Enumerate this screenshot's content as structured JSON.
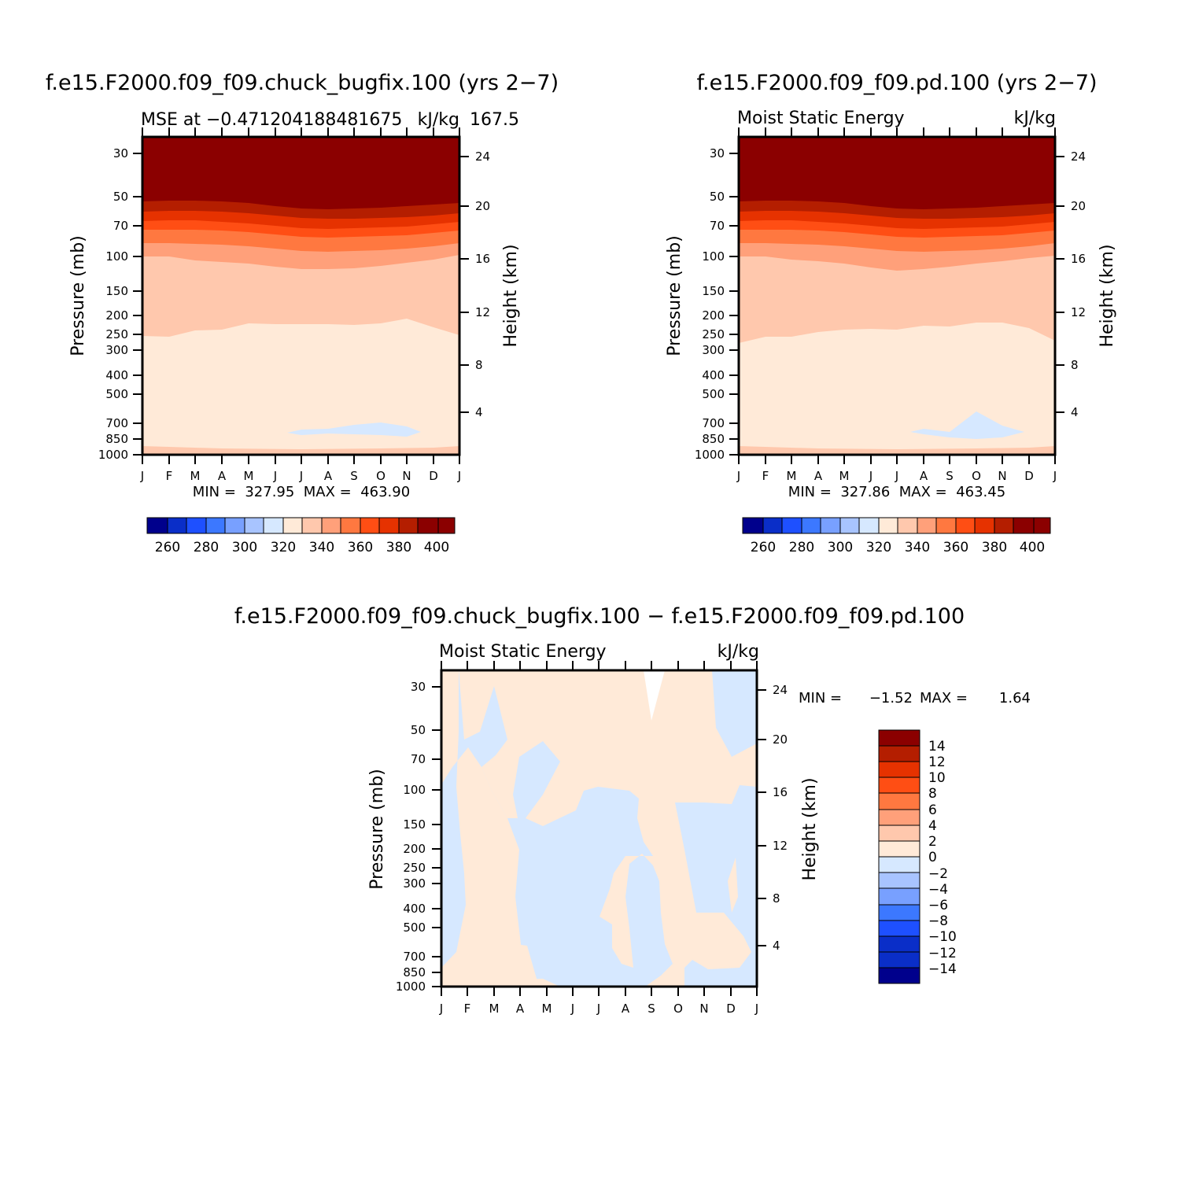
{
  "palette": [
    "#00008c",
    "#0a2ec8",
    "#1e50ff",
    "#3c78ff",
    "#78a0ff",
    "#a8c4ff",
    "#d6e8ff",
    "#ffead8",
    "#ffc8ad",
    "#ffa07a",
    "#ff7840",
    "#ff4e14",
    "#e63200",
    "#b41e00",
    "#8b0000"
  ],
  "chart_data": [
    {
      "type": "contour",
      "panel": "top-left",
      "title": "f.e15.F2000.f09_f09.chuck_bugfix.100 (yrs 2−7)",
      "subtitle_left": "MSE at −0.471204188481675",
      "subtitle_right": "kJ/kg",
      "subtitle_overlap": "167.5",
      "xlabel": "",
      "ylabel": "Pressure (mb)",
      "ylabel_right": "Height (km)",
      "x": [
        "J",
        "F",
        "M",
        "A",
        "M",
        "J",
        "J",
        "A",
        "S",
        "O",
        "N",
        "D",
        "J"
      ],
      "y_pressure_mb": [
        30,
        50,
        70,
        100,
        150,
        200,
        250,
        300,
        400,
        500,
        700,
        850,
        1000
      ],
      "y_height_km": [
        24,
        20,
        16,
        12,
        8,
        4
      ],
      "ylim_mb": [
        1000,
        25
      ],
      "y_scale": "log",
      "min_max": "MIN =  327.95  MAX =  463.90",
      "levels": [
        260,
        270,
        280,
        290,
        300,
        310,
        320,
        330,
        340,
        350,
        360,
        370,
        380,
        390,
        400
      ],
      "colorbar_labels": [
        "260",
        "280",
        "300",
        "320",
        "340",
        "360",
        "380",
        "400"
      ],
      "colorbar_orientation": "horizontal",
      "value_approx": {
        "month": [
          "J",
          "F",
          "M",
          "A",
          "M",
          "J",
          "J",
          "A",
          "S",
          "O",
          "N",
          "D",
          "J"
        ],
        "level_340_boundary_mb": [
          255,
          260,
          230,
          225,
          215,
          215,
          215,
          215,
          215,
          220,
          200,
          230,
          255
        ],
        "level_350_boundary_mb": [
          100,
          100,
          105,
          107,
          110,
          115,
          118,
          118,
          115,
          112,
          110,
          105,
          100
        ],
        "level_390_boundary_mb": [
          55,
          55,
          55,
          56,
          58,
          60,
          61,
          61,
          60,
          60,
          59,
          57,
          55
        ],
        "below_330_region": {
          "months": [
            "J",
            "A",
            "S",
            "O",
            "N"
          ],
          "pressure_mb": [
            700,
            800
          ]
        }
      }
    },
    {
      "type": "contour",
      "panel": "top-right",
      "title": "f.e15.F2000.f09_f09.pd.100 (yrs 2−7)",
      "subtitle_left": "Moist Static Energy",
      "subtitle_right": "kJ/kg",
      "xlabel": "",
      "ylabel": "Pressure (mb)",
      "ylabel_right": "Height (km)",
      "x": [
        "J",
        "F",
        "M",
        "A",
        "M",
        "J",
        "J",
        "A",
        "S",
        "O",
        "N",
        "D",
        "J"
      ],
      "y_pressure_mb": [
        30,
        50,
        70,
        100,
        150,
        200,
        250,
        300,
        400,
        500,
        700,
        850,
        1000
      ],
      "y_height_km": [
        24,
        20,
        16,
        12,
        8,
        4
      ],
      "ylim_mb": [
        1000,
        25
      ],
      "y_scale": "log",
      "min_max": "MIN =  327.86  MAX =  463.45",
      "levels": [
        260,
        270,
        280,
        290,
        300,
        310,
        320,
        330,
        340,
        350,
        360,
        370,
        380,
        390,
        400
      ],
      "colorbar_labels": [
        "260",
        "280",
        "300",
        "320",
        "340",
        "360",
        "380",
        "400"
      ],
      "colorbar_orientation": "horizontal",
      "value_approx": {
        "month": [
          "J",
          "F",
          "M",
          "A",
          "M",
          "J",
          "J",
          "A",
          "S",
          "O",
          "N",
          "D",
          "J"
        ],
        "level_340_boundary_mb": [
          270,
          255,
          250,
          230,
          225,
          220,
          225,
          215,
          215,
          210,
          205,
          215,
          265
        ],
        "level_350_boundary_mb": [
          100,
          100,
          105,
          107,
          110,
          115,
          118,
          120,
          117,
          112,
          108,
          104,
          100
        ],
        "level_390_boundary_mb": [
          56,
          56,
          56,
          57,
          58,
          60,
          61,
          61,
          61,
          60,
          59,
          58,
          56
        ],
        "below_330_region": {
          "months": [
            "A",
            "S",
            "O",
            "N"
          ],
          "pressure_mb": [
            670,
            830
          ]
        }
      }
    },
    {
      "type": "contour",
      "panel": "bottom",
      "title": "f.e15.F2000.f09_f09.chuck_bugfix.100 − f.e15.F2000.f09_f09.pd.100",
      "subtitle_left": "Moist Static Energy",
      "subtitle_right": "kJ/kg",
      "xlabel": "",
      "ylabel": "Pressure (mb)",
      "ylabel_right": "Height (km)",
      "x": [
        "J",
        "F",
        "M",
        "A",
        "M",
        "J",
        "J",
        "A",
        "S",
        "O",
        "N",
        "D",
        "J"
      ],
      "y_pressure_mb": [
        30,
        50,
        70,
        100,
        150,
        200,
        250,
        300,
        400,
        500,
        700,
        850,
        1000
      ],
      "y_height_km": [
        24,
        20,
        16,
        12,
        8,
        4
      ],
      "ylim_mb": [
        1000,
        25
      ],
      "y_scale": "log",
      "min_max_label": "MIN =",
      "min_value": "−1.52",
      "max_label": "MAX =",
      "max_value": "1.64",
      "levels": [
        -14,
        -12,
        -10,
        -8,
        -6,
        -4,
        -2,
        0,
        2,
        4,
        6,
        8,
        10,
        12,
        14
      ],
      "colorbar_labels": [
        "14",
        "12",
        "10",
        "8",
        "6",
        "4",
        "2",
        "0",
        "−2",
        "−4",
        "−6",
        "−8",
        "−10",
        "−12",
        "−14"
      ],
      "colorbar_orientation": "vertical",
      "value_approx": {
        "note_positive_regions": "0 to 2 kJ/kg",
        "positive_regions": [
          {
            "name": "upper-left column",
            "months_from": "J",
            "months_to": "A",
            "pressure_mb_from": 25,
            "pressure_mb_to": 320
          },
          {
            "name": "upper band",
            "months_from": "F",
            "months_to": "N",
            "pressure_mb_from": 25,
            "pressure_mb_to": 90
          },
          {
            "name": "central column",
            "months_from": "J",
            "months_to": "N",
            "pressure_mb_from": 90,
            "pressure_mb_to": 1000
          },
          {
            "name": "lower-right lobe",
            "months_from": "N",
            "months_to": "J",
            "pressure_mb_from": 500,
            "pressure_mb_to": 800
          },
          {
            "name": "surface patch",
            "months_from": "A",
            "months_to": "M",
            "pressure_mb_from": 650,
            "pressure_mb_to": 1000
          }
        ],
        "undefined_region": {
          "months_from": "S",
          "months_to": "S",
          "pressure_mb_from": 25,
          "pressure_mb_to": 40
        }
      }
    }
  ]
}
